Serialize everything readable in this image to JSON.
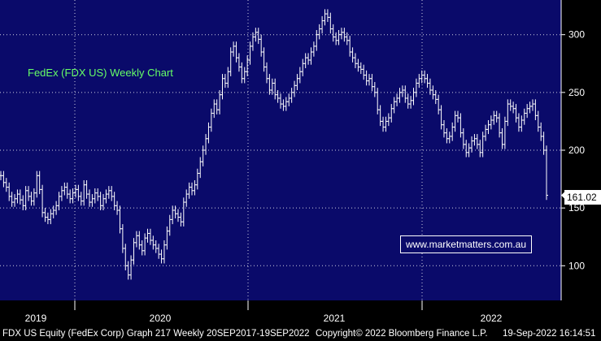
{
  "chart_data": {
    "type": "line",
    "title": "FedEx (FDX US) Weekly Chart",
    "ylim": [
      70,
      330
    ],
    "y_ticks": [
      100,
      150,
      200,
      250,
      300
    ],
    "x_labels": [
      "2019",
      "2020",
      "2021",
      "2022"
    ],
    "last_value": "161.02",
    "grid": true,
    "series": [
      {
        "values": [
          178,
          172,
          168,
          160,
          155,
          158,
          162,
          157,
          152,
          165,
          160,
          156,
          163,
          178,
          166,
          146,
          142,
          140,
          145,
          148,
          152,
          160,
          165,
          168,
          162,
          158,
          163,
          166,
          160,
          156,
          170,
          162,
          155,
          158,
          163,
          160,
          152,
          158,
          162,
          165,
          160,
          152,
          148,
          132,
          115,
          100,
          92,
          105,
          120,
          126,
          118,
          113,
          124,
          128,
          122,
          118,
          115,
          110,
          106,
          118,
          130,
          140,
          148,
          145,
          142,
          138,
          155,
          162,
          168,
          165,
          170,
          180,
          190,
          200,
          210,
          220,
          232,
          240,
          235,
          248,
          262,
          258,
          268,
          285,
          290,
          280,
          272,
          262,
          268,
          278,
          290,
          298,
          302,
          296,
          285,
          272,
          262,
          252,
          258,
          248,
          245,
          240,
          238,
          242,
          245,
          250,
          256,
          262,
          268,
          275,
          280,
          278,
          285,
          290,
          300,
          305,
          312,
          318,
          315,
          305,
          298,
          295,
          300,
          302,
          298,
          295,
          285,
          280,
          275,
          272,
          270,
          265,
          260,
          262,
          255,
          250,
          235,
          225,
          220,
          225,
          228,
          236,
          242,
          245,
          250,
          252,
          245,
          240,
          243,
          250,
          258,
          262,
          265,
          262,
          258,
          252,
          248,
          244,
          235,
          222,
          215,
          210,
          212,
          220,
          230,
          228,
          215,
          205,
          198,
          202,
          208,
          210,
          205,
          198,
          212,
          218,
          222,
          226,
          230,
          228,
          215,
          205,
          225,
          240,
          238,
          236,
          228,
          220,
          226,
          232,
          236,
          238,
          240,
          230,
          220,
          212,
          200,
          161
        ]
      }
    ]
  },
  "watermark": "www.marketmatters.com.au",
  "footer": {
    "left": "FDX US Equity (FedEx Corp) Graph 217  Weekly 20SEP2017-19SEP2022",
    "mid": "Copyright© 2022 Bloomberg Finance L.P.",
    "right": "19-Sep-2022 16:14:51"
  },
  "colors": {
    "background": "#0a0a6a",
    "price": "#ffffff",
    "title": "#66ff66",
    "grid": "#cfcfe0"
  }
}
